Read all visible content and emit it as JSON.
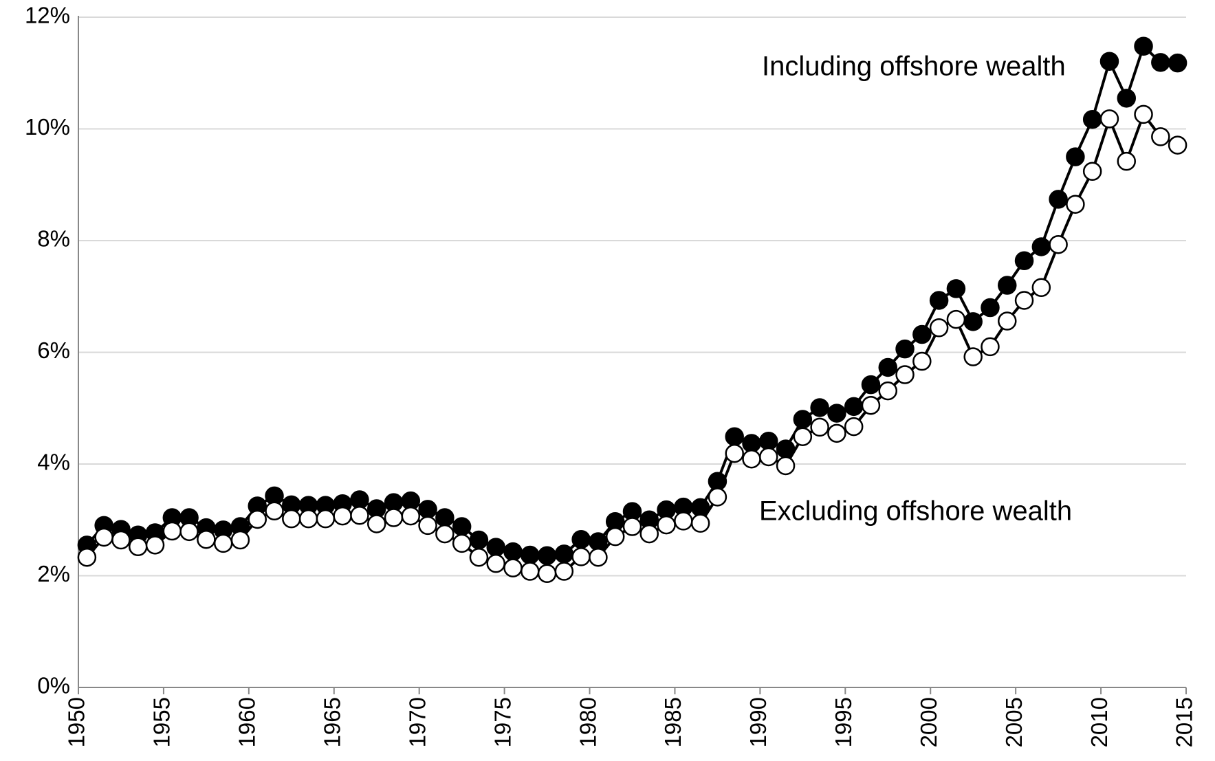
{
  "chart_data": {
    "type": "line",
    "x": [
      1950,
      1951,
      1952,
      1953,
      1954,
      1955,
      1956,
      1957,
      1958,
      1959,
      1960,
      1961,
      1962,
      1963,
      1964,
      1965,
      1966,
      1967,
      1968,
      1969,
      1970,
      1971,
      1972,
      1973,
      1974,
      1975,
      1976,
      1977,
      1978,
      1979,
      1980,
      1981,
      1982,
      1983,
      1984,
      1985,
      1986,
      1987,
      1988,
      1989,
      1990,
      1991,
      1992,
      1993,
      1994,
      1995,
      1996,
      1997,
      1998,
      1999,
      2000,
      2001,
      2002,
      2003,
      2004,
      2005,
      2006,
      2007,
      2008,
      2009,
      2010,
      2011,
      2012,
      2013,
      2014
    ],
    "series": [
      {
        "name": "Including offshore wealth",
        "color": "#000000",
        "marker_fill": "#000000",
        "values": [
          2.55,
          2.9,
          2.83,
          2.73,
          2.77,
          3.04,
          3.04,
          2.86,
          2.82,
          2.88,
          3.25,
          3.43,
          3.27,
          3.26,
          3.26,
          3.29,
          3.36,
          3.2,
          3.31,
          3.34,
          3.19,
          3.04,
          2.88,
          2.64,
          2.51,
          2.43,
          2.37,
          2.36,
          2.39,
          2.65,
          2.61,
          2.97,
          3.15,
          3.0,
          3.18,
          3.23,
          3.22,
          3.69,
          4.49,
          4.37,
          4.41,
          4.27,
          4.8,
          5.01,
          4.91,
          5.03,
          5.42,
          5.73,
          6.06,
          6.32,
          6.93,
          7.14,
          6.55,
          6.8,
          7.2,
          7.64,
          7.89,
          8.74,
          9.5,
          10.17,
          11.21,
          10.55,
          11.48,
          11.19,
          11.18
        ]
      },
      {
        "name": "Excluding offshore wealth",
        "color": "#000000",
        "marker_fill": "#ffffff",
        "values": [
          2.33,
          2.69,
          2.64,
          2.52,
          2.55,
          2.8,
          2.79,
          2.65,
          2.58,
          2.64,
          3.01,
          3.16,
          3.02,
          3.02,
          3.02,
          3.07,
          3.08,
          2.93,
          3.04,
          3.07,
          2.9,
          2.75,
          2.58,
          2.33,
          2.22,
          2.14,
          2.08,
          2.04,
          2.08,
          2.34,
          2.33,
          2.7,
          2.88,
          2.75,
          2.91,
          2.98,
          2.94,
          3.41,
          4.19,
          4.09,
          4.13,
          3.97,
          4.49,
          4.66,
          4.55,
          4.67,
          5.05,
          5.31,
          5.6,
          5.84,
          6.44,
          6.59,
          5.92,
          6.1,
          6.56,
          6.93,
          7.16,
          7.93,
          8.65,
          9.24,
          10.18,
          9.42,
          10.26,
          9.86,
          9.71
        ]
      }
    ],
    "xlim": [
      1950,
      2015
    ],
    "xticks": [
      1950,
      1955,
      1960,
      1965,
      1970,
      1975,
      1980,
      1985,
      1990,
      1995,
      2000,
      2005,
      2010,
      2015
    ],
    "ylim": [
      0,
      12
    ],
    "yticks": [
      {
        "value": 0,
        "label": "0%"
      },
      {
        "value": 2,
        "label": "2%"
      },
      {
        "value": 4,
        "label": "4%"
      },
      {
        "value": 6,
        "label": "6%"
      },
      {
        "value": 8,
        "label": "8%"
      },
      {
        "value": 10,
        "label": "10%"
      },
      {
        "value": 12,
        "label": "12%"
      }
    ],
    "grid": true
  }
}
